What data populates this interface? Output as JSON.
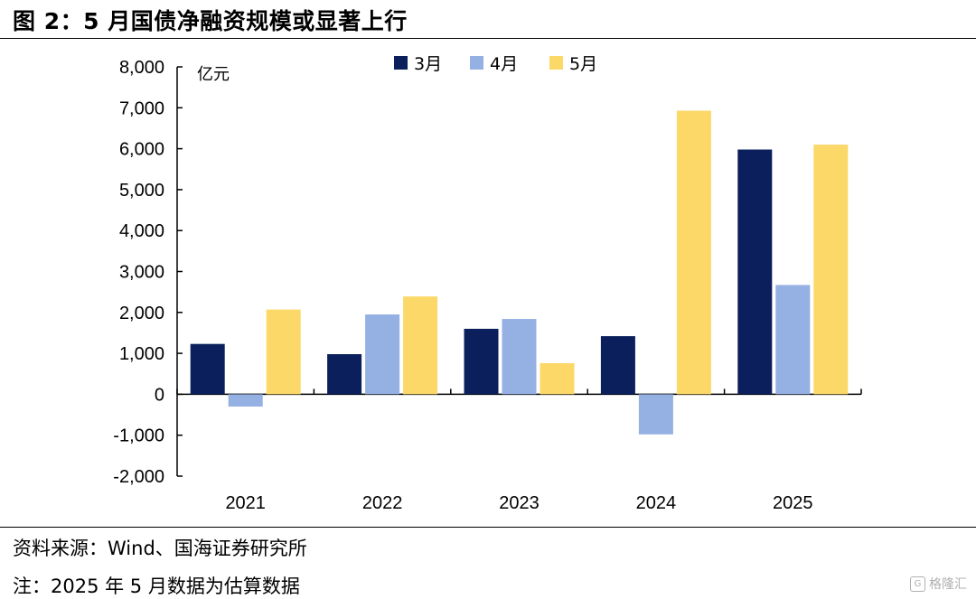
{
  "figure": {
    "title": "图 2：5 月国债净融资规模或显著上行",
    "source": "资料来源：Wind、国海证券研究所",
    "note": "注：2025 年 5 月数据为估算数据",
    "watermark": "格隆汇",
    "watermark_logo": "G"
  },
  "chart_data": {
    "type": "bar",
    "title": "5 月国债净融资规模或显著上行",
    "unit_label": "亿元",
    "categories": [
      "2021",
      "2022",
      "2023",
      "2024",
      "2025"
    ],
    "series": [
      {
        "name": "3月",
        "color": "#0a1f5c",
        "values": [
          1230,
          980,
          1600,
          1420,
          5980
        ]
      },
      {
        "name": "4月",
        "color": "#95b0e2",
        "values": [
          -300,
          1950,
          1840,
          -980,
          2670
        ]
      },
      {
        "name": "5月",
        "color": "#fbd868",
        "values": [
          2070,
          2390,
          760,
          6930,
          6100
        ]
      }
    ],
    "ylim": [
      -2000,
      8000
    ],
    "yticks": [
      -2000,
      -1000,
      0,
      1000,
      2000,
      3000,
      4000,
      5000,
      6000,
      7000,
      8000
    ],
    "ytick_labels": [
      "-2,000",
      "-1,000",
      "0",
      "1,000",
      "2,000",
      "3,000",
      "4,000",
      "5,000",
      "6,000",
      "7,000",
      "8,000"
    ],
    "legend_position": "top-center",
    "grid": false
  }
}
